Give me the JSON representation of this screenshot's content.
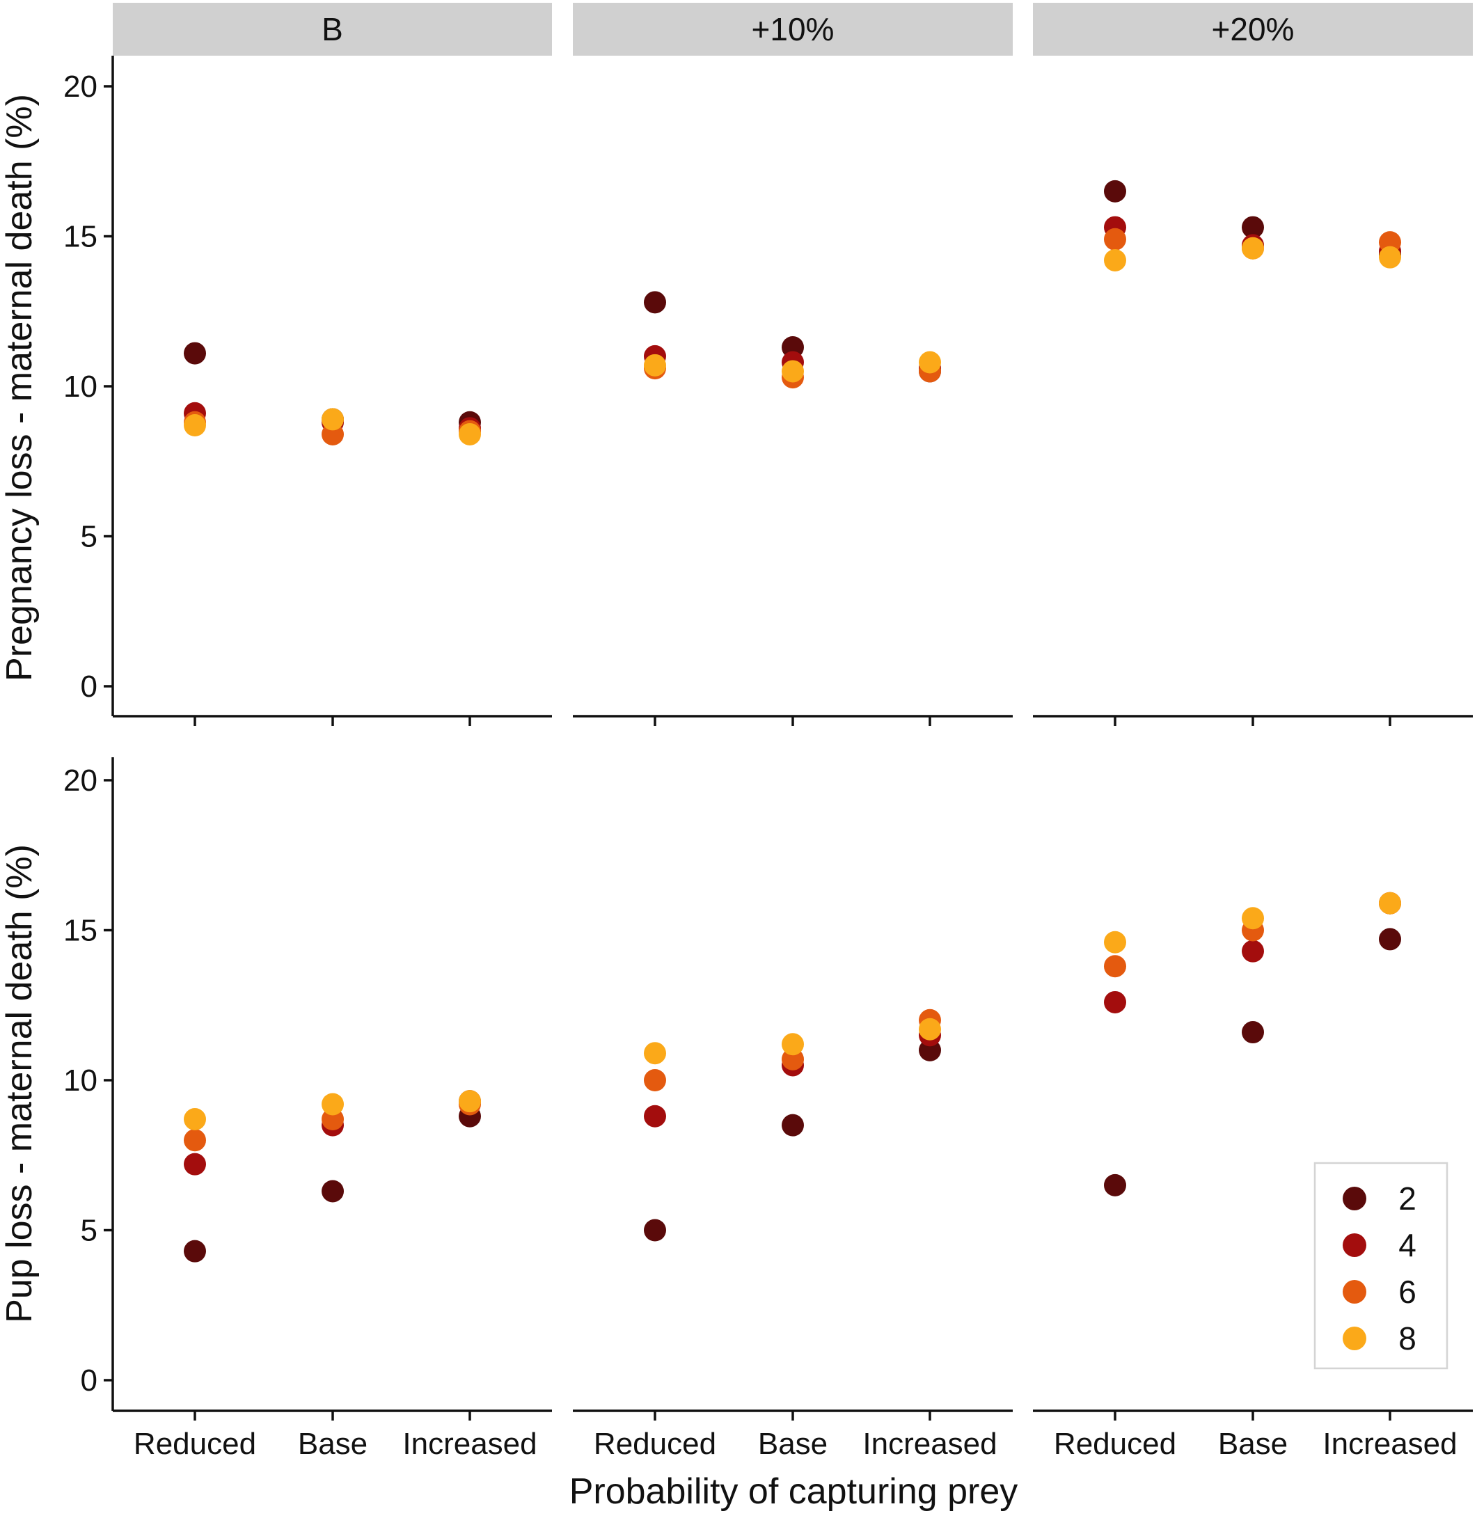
{
  "chart_data": {
    "type": "scatter",
    "xlabel": "Probability of capturing prey",
    "facet_columns": [
      "B",
      "+10%",
      "+20%"
    ],
    "categories": [
      "Reduced",
      "Base",
      "Increased"
    ],
    "legend": {
      "title": "",
      "position": "bottom-right",
      "entries": [
        {
          "label": "2",
          "color": "#5a0a0a"
        },
        {
          "label": "4",
          "color": "#a30d0d"
        },
        {
          "label": "6",
          "color": "#e45a0f"
        },
        {
          "label": "8",
          "color": "#fba919"
        }
      ]
    },
    "ylim": [
      0,
      20
    ],
    "yticks": [
      "0",
      "5",
      "10",
      "15",
      "20"
    ],
    "panels": [
      {
        "ylabel": "Pregnancy loss - maternal death (%)",
        "facets": [
          {
            "facet": "B",
            "series": [
              {
                "name": "2",
                "values": [
                  11.1,
                  8.9,
                  8.8
                ]
              },
              {
                "name": "4",
                "values": [
                  9.1,
                  8.8,
                  8.6
                ]
              },
              {
                "name": "6",
                "values": [
                  8.8,
                  8.4,
                  8.5
                ]
              },
              {
                "name": "8",
                "values": [
                  8.7,
                  8.9,
                  8.4
                ]
              }
            ]
          },
          {
            "facet": "+10%",
            "series": [
              {
                "name": "2",
                "values": [
                  12.8,
                  11.3,
                  10.5
                ]
              },
              {
                "name": "4",
                "values": [
                  11.0,
                  10.8,
                  10.6
                ]
              },
              {
                "name": "6",
                "values": [
                  10.6,
                  10.3,
                  10.5
                ]
              },
              {
                "name": "8",
                "values": [
                  10.7,
                  10.5,
                  10.8
                ]
              }
            ]
          },
          {
            "facet": "+20%",
            "series": [
              {
                "name": "2",
                "values": [
                  16.5,
                  15.3,
                  14.4
                ]
              },
              {
                "name": "4",
                "values": [
                  15.3,
                  14.7,
                  14.5
                ]
              },
              {
                "name": "6",
                "values": [
                  14.9,
                  14.6,
                  14.8
                ]
              },
              {
                "name": "8",
                "values": [
                  14.2,
                  14.6,
                  14.3
                ]
              }
            ]
          }
        ]
      },
      {
        "ylabel": "Pup loss - maternal death (%)",
        "facets": [
          {
            "facet": "B",
            "series": [
              {
                "name": "2",
                "values": [
                  4.3,
                  6.3,
                  8.8
                ]
              },
              {
                "name": "4",
                "values": [
                  7.2,
                  8.5,
                  9.3
                ]
              },
              {
                "name": "6",
                "values": [
                  8.0,
                  8.7,
                  9.2
                ]
              },
              {
                "name": "8",
                "values": [
                  8.7,
                  9.2,
                  9.3
                ]
              }
            ]
          },
          {
            "facet": "+10%",
            "series": [
              {
                "name": "2",
                "values": [
                  5.0,
                  8.5,
                  11.0
                ]
              },
              {
                "name": "4",
                "values": [
                  8.8,
                  10.5,
                  11.5
                ]
              },
              {
                "name": "6",
                "values": [
                  10.0,
                  10.7,
                  12.0
                ]
              },
              {
                "name": "8",
                "values": [
                  10.9,
                  11.2,
                  11.7
                ]
              }
            ]
          },
          {
            "facet": "+20%",
            "series": [
              {
                "name": "2",
                "values": [
                  6.5,
                  11.6,
                  14.7
                ]
              },
              {
                "name": "4",
                "values": [
                  12.6,
                  14.3,
                  15.9
                ]
              },
              {
                "name": "6",
                "values": [
                  13.8,
                  15.0,
                  15.9
                ]
              },
              {
                "name": "8",
                "values": [
                  14.6,
                  15.4,
                  15.9
                ]
              }
            ]
          }
        ]
      }
    ]
  }
}
